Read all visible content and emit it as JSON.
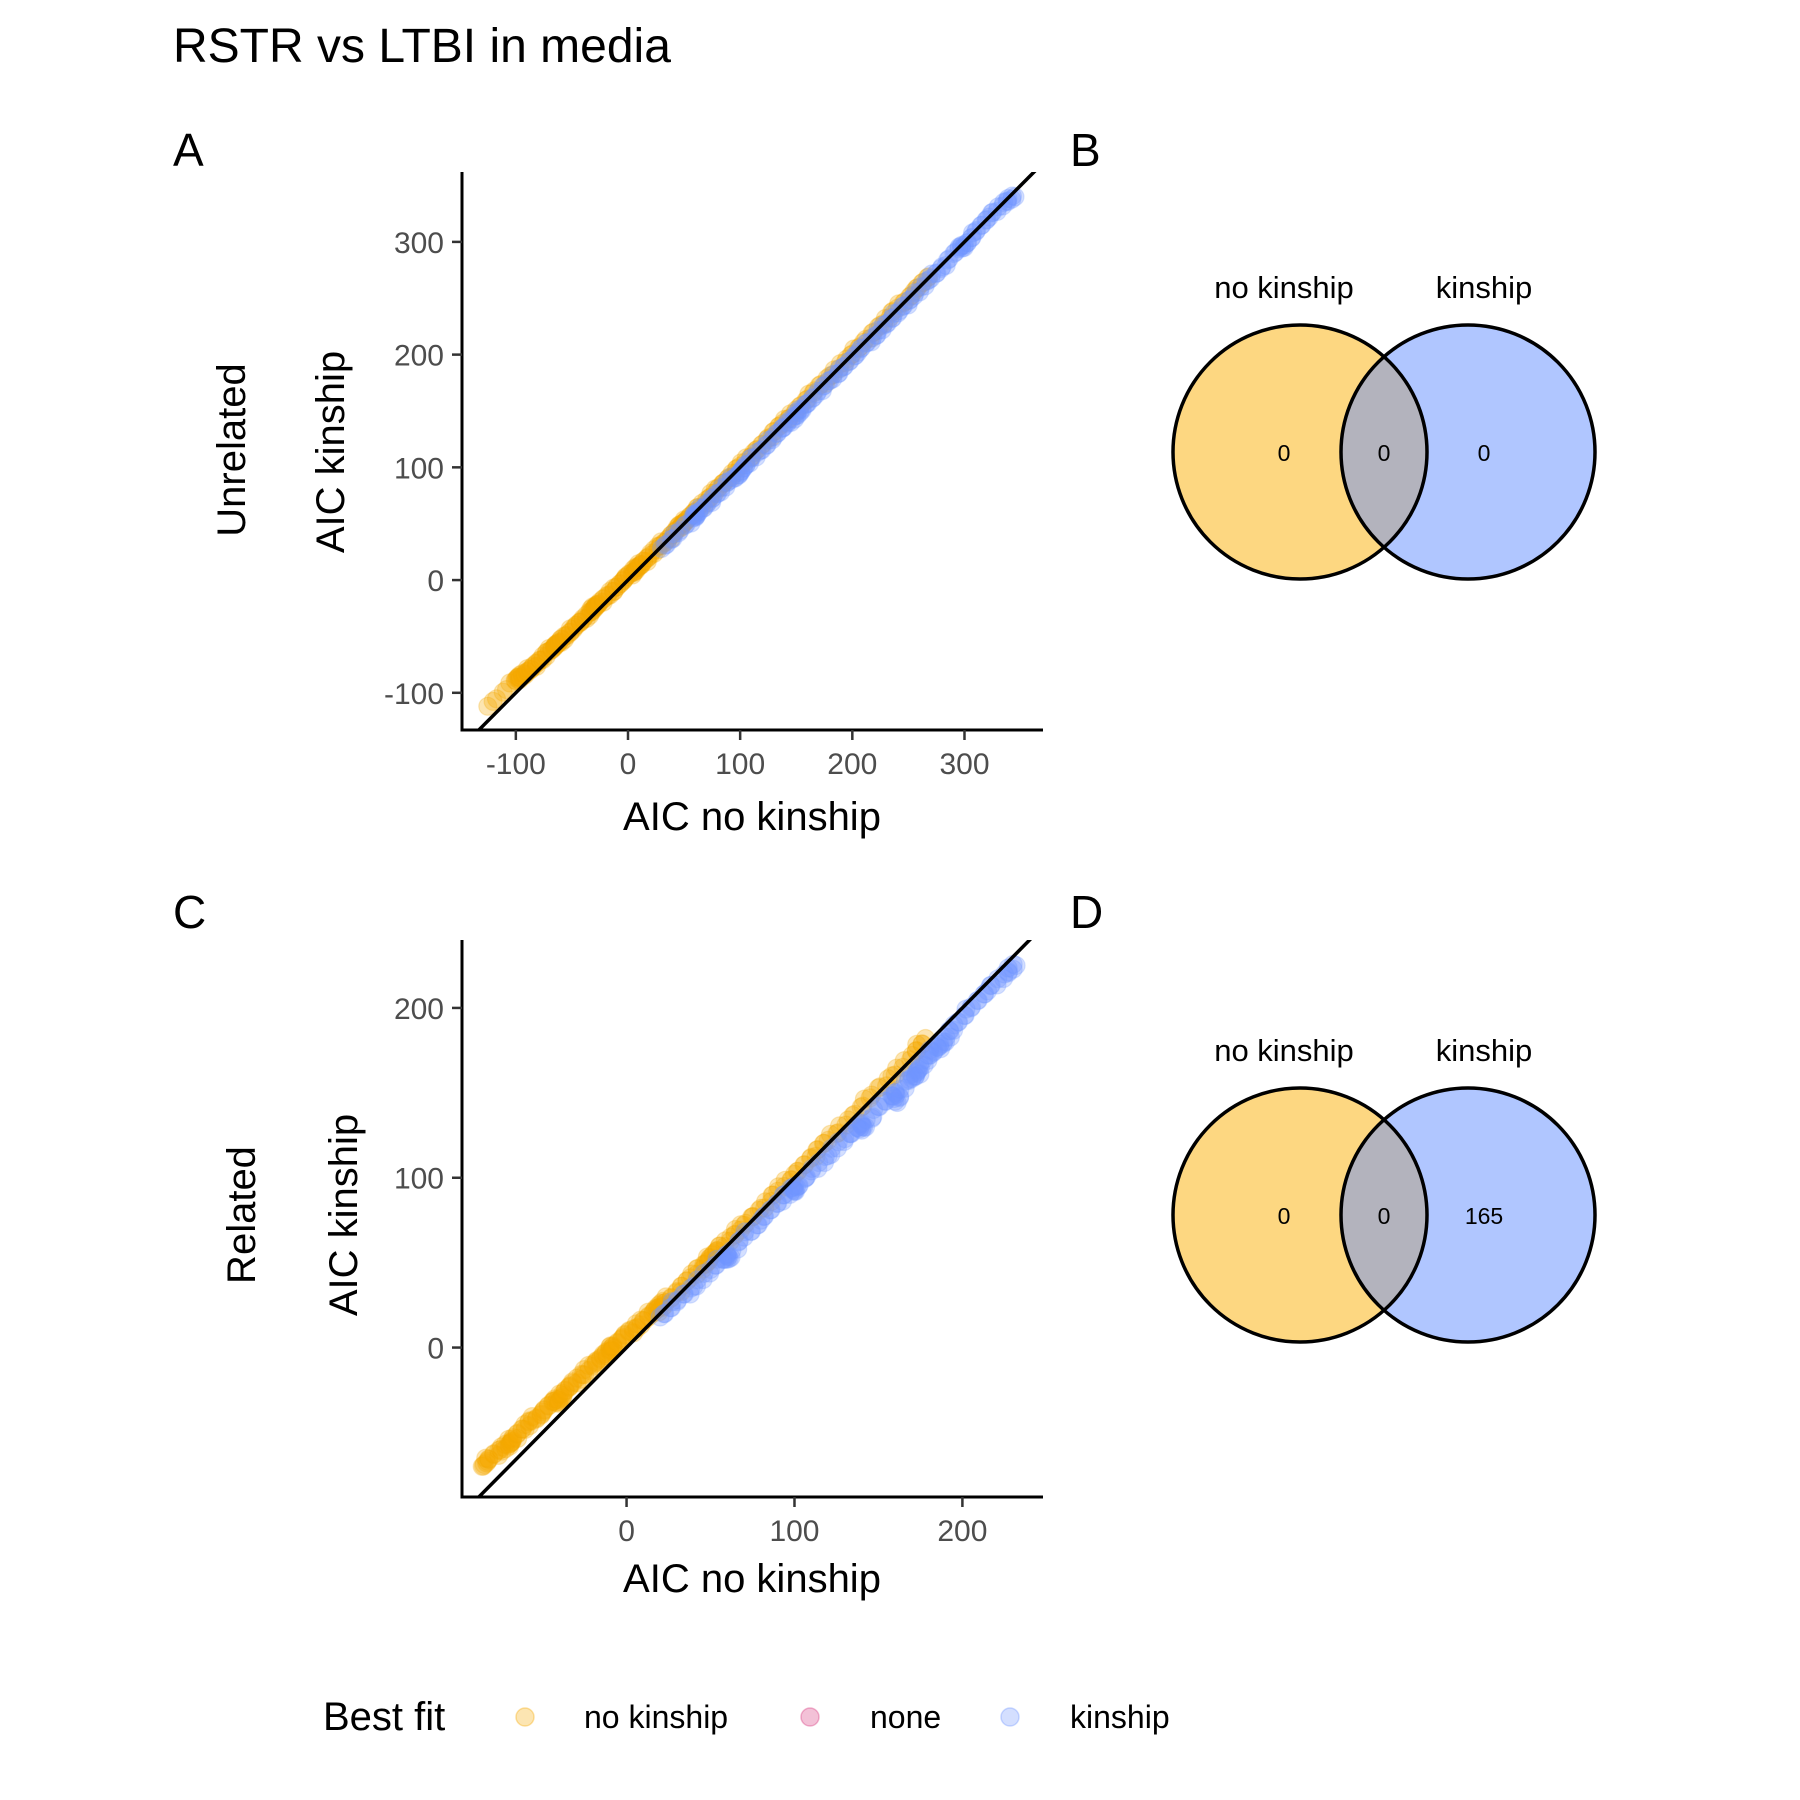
{
  "title": "RSTR vs LTBI in media",
  "colors": {
    "no_kinship": "#f5a800",
    "none": "#d6337a",
    "kinship": "#6f96ff",
    "venn_left_fill": "#fdd781",
    "venn_right_fill": "#b0c6ff",
    "venn_overlap_fill": "#b3b3bd",
    "identity_line": "#000000"
  },
  "chart_data": [
    {
      "panel": "A",
      "type": "scatter",
      "row_label": "Unrelated",
      "xlabel": "AIC no kinship",
      "ylabel": "AIC kinship",
      "xlim": [
        -148,
        370
      ],
      "ylim": [
        -133,
        362
      ],
      "xticks": [
        -100,
        0,
        100,
        200,
        300
      ],
      "yticks": [
        -100,
        0,
        100,
        200,
        300
      ],
      "reference_line": "y = x",
      "point_opacity": 0.3,
      "series": [
        {
          "name": "no kinship",
          "description_range": "points lie slightly above the y = x line",
          "points": [
            [
              -100,
              -89
            ],
            [
              -92,
              -83
            ],
            [
              -85,
              -77
            ],
            [
              -78,
              -71
            ],
            [
              -70,
              -63
            ],
            [
              -62,
              -56
            ],
            [
              -55,
              -49
            ],
            [
              -48,
              -42
            ],
            [
              -40,
              -35
            ],
            [
              -33,
              -28
            ],
            [
              -26,
              -21
            ],
            [
              -18,
              -14
            ],
            [
              -10,
              -6
            ],
            [
              -3,
              1
            ],
            [
              4,
              7
            ],
            [
              12,
              14
            ],
            [
              20,
              22
            ],
            [
              28,
              30
            ],
            [
              36,
              37
            ],
            [
              44,
              45
            ],
            [
              52,
              53
            ],
            [
              60,
              61
            ],
            [
              70,
              71
            ],
            [
              80,
              81
            ],
            [
              90,
              91
            ],
            [
              100,
              101
            ],
            [
              112,
              113
            ],
            [
              125,
              126
            ],
            [
              138,
              139
            ],
            [
              150,
              151
            ],
            [
              165,
              166
            ],
            [
              180,
              181
            ],
            [
              195,
              196
            ],
            [
              210,
              211
            ],
            [
              225,
              226
            ],
            [
              240,
              241
            ],
            [
              255,
              256
            ],
            [
              268,
              269
            ],
            [
              -97,
              -86
            ],
            [
              -65,
              -58
            ],
            [
              -30,
              -24
            ],
            [
              8,
              11
            ],
            [
              48,
              50
            ],
            [
              -125,
              -112
            ]
          ]
        },
        {
          "name": "none",
          "points": []
        },
        {
          "name": "kinship",
          "description_range": "points lie slightly below or on the y = x line",
          "points": [
            [
              30,
              28
            ],
            [
              45,
              42
            ],
            [
              60,
              57
            ],
            [
              70,
              67
            ],
            [
              80,
              77
            ],
            [
              92,
              89
            ],
            [
              105,
              102
            ],
            [
              118,
              115
            ],
            [
              130,
              127
            ],
            [
              142,
              139
            ],
            [
              155,
              152
            ],
            [
              168,
              165
            ],
            [
              180,
              177
            ],
            [
              192,
              189
            ],
            [
              205,
              202
            ],
            [
              218,
              215
            ],
            [
              230,
              227
            ],
            [
              242,
              239
            ],
            [
              255,
              252
            ],
            [
              268,
              266
            ],
            [
              280,
              278
            ],
            [
              295,
              294
            ],
            [
              310,
              309
            ],
            [
              322,
              322
            ],
            [
              335,
              335
            ],
            [
              345,
              340
            ],
            [
              300,
              297
            ],
            [
              150,
              146
            ],
            [
              100,
              95
            ],
            [
              60,
              58
            ]
          ]
        }
      ]
    },
    {
      "panel": "B",
      "type": "venn",
      "sets": [
        "no kinship",
        "kinship"
      ],
      "counts": {
        "left_only": "0",
        "overlap": "0",
        "right_only": "0"
      }
    },
    {
      "panel": "C",
      "type": "scatter",
      "row_label": "Related",
      "xlabel": "AIC no kinship",
      "ylabel": "AIC kinship",
      "xlim": [
        -98,
        248
      ],
      "ylim": [
        -88,
        240
      ],
      "xticks": [
        0,
        100,
        200
      ],
      "yticks": [
        0,
        100,
        200
      ],
      "reference_line": "y = x",
      "point_opacity": 0.3,
      "series": [
        {
          "name": "no kinship",
          "points": [
            [
              -82,
              -66
            ],
            [
              -75,
              -60
            ],
            [
              -68,
              -54
            ],
            [
              -62,
              -48
            ],
            [
              -56,
              -43
            ],
            [
              -50,
              -38
            ],
            [
              -44,
              -32
            ],
            [
              -38,
              -27
            ],
            [
              -32,
              -21
            ],
            [
              -26,
              -16
            ],
            [
              -20,
              -10
            ],
            [
              -14,
              -5
            ],
            [
              -8,
              1
            ],
            [
              -2,
              6
            ],
            [
              4,
              11
            ],
            [
              10,
              16
            ],
            [
              16,
              21
            ],
            [
              22,
              26
            ],
            [
              30,
              33
            ],
            [
              38,
              41
            ],
            [
              46,
              49
            ],
            [
              54,
              57
            ],
            [
              62,
              65
            ],
            [
              70,
              72
            ],
            [
              80,
              82
            ],
            [
              90,
              92
            ],
            [
              100,
              102
            ],
            [
              110,
              112
            ],
            [
              120,
              122
            ],
            [
              132,
              134
            ],
            [
              145,
              147
            ],
            [
              158,
              160
            ],
            [
              170,
              172
            ],
            [
              178,
              182
            ],
            [
              -70,
              -57
            ],
            [
              -40,
              -31
            ],
            [
              -10,
              -2
            ],
            [
              20,
              24
            ],
            [
              50,
              53
            ],
            [
              -86,
              -70
            ]
          ]
        },
        {
          "name": "none",
          "points": []
        },
        {
          "name": "kinship",
          "points": [
            [
              20,
              18
            ],
            [
              30,
              27
            ],
            [
              40,
              36
            ],
            [
              50,
              46
            ],
            [
              60,
              55
            ],
            [
              70,
              65
            ],
            [
              80,
              75
            ],
            [
              90,
              85
            ],
            [
              100,
              95
            ],
            [
              110,
              104
            ],
            [
              120,
              113
            ],
            [
              130,
              123
            ],
            [
              140,
              132
            ],
            [
              150,
              142
            ],
            [
              160,
              150
            ],
            [
              168,
              158
            ],
            [
              175,
              165
            ],
            [
              180,
              172
            ],
            [
              185,
              177
            ],
            [
              195,
              190
            ],
            [
              205,
              200
            ],
            [
              215,
              210
            ],
            [
              225,
              220
            ],
            [
              232,
              225
            ],
            [
              172,
              160
            ],
            [
              160,
              145
            ],
            [
              140,
              128
            ],
            [
              100,
              92
            ],
            [
              60,
              52
            ],
            [
              190,
              180
            ]
          ]
        }
      ]
    },
    {
      "panel": "D",
      "type": "venn",
      "sets": [
        "no kinship",
        "kinship"
      ],
      "counts": {
        "left_only": "0",
        "overlap": "0",
        "right_only": "165"
      }
    }
  ],
  "legend": {
    "title": "Best fit",
    "items": [
      {
        "label": "no kinship",
        "color_key": "no_kinship"
      },
      {
        "label": "none",
        "color_key": "none"
      },
      {
        "label": "kinship",
        "color_key": "kinship"
      }
    ]
  }
}
